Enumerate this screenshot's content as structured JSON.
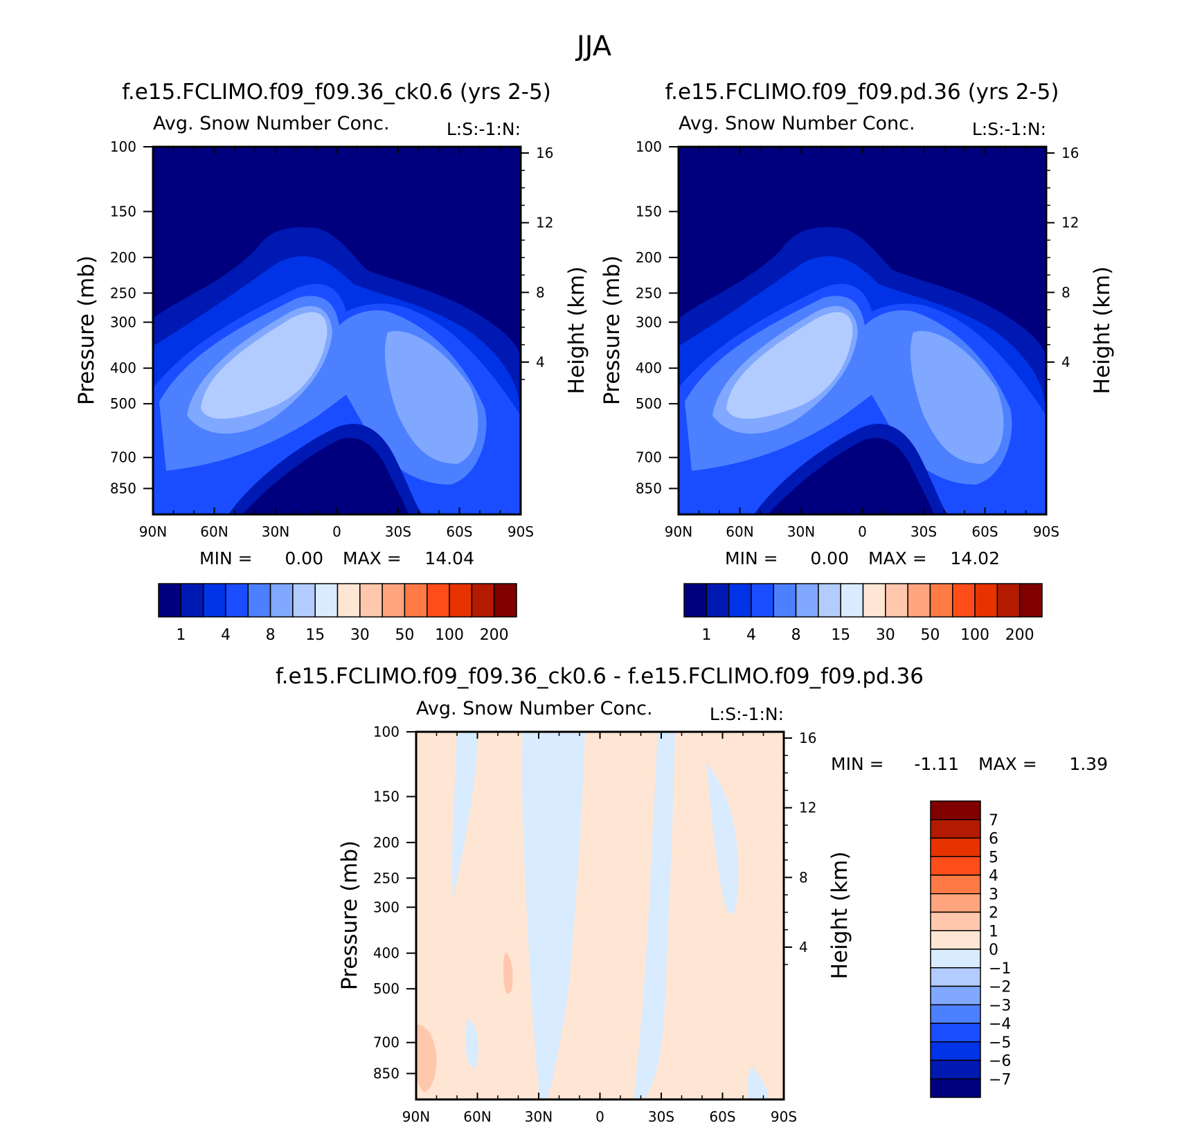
{
  "page": {
    "title": "JJA"
  },
  "panels": [
    {
      "id": "p1",
      "title": "f.e15.FCLIMO.f09_f09.36_ck0.6 (yrs 2-5)",
      "subtitle": "Avg. Snow Number Conc.",
      "units": "L:S:-1:N:",
      "ylabel": "Pressure (mb)",
      "y2label": "Height (km)",
      "min_label": "MIN =",
      "min_value": "0.00",
      "max_label": "MAX =",
      "max_value": "14.04"
    },
    {
      "id": "p2",
      "title": "f.e15.FCLIMO.f09_f09.pd.36 (yrs 2-5)",
      "subtitle": "Avg. Snow Number Conc.",
      "units": "L:S:-1:N:",
      "ylabel": "Pressure (mb)",
      "y2label": "Height (km)",
      "min_label": "MIN =",
      "min_value": "0.00",
      "max_label": "MAX =",
      "max_value": "14.02"
    },
    {
      "id": "p3",
      "title": "f.e15.FCLIMO.f09_f09.36_ck0.6 - f.e15.FCLIMO.f09_f09.pd.36",
      "subtitle": "Avg. Snow Number Conc.",
      "units": "L:S:-1:N:",
      "ylabel": "Pressure (mb)",
      "y2label": "Height (km)",
      "min_label": "MIN =",
      "min_value": "-1.11",
      "max_label": "MAX =",
      "max_value": "1.39"
    }
  ],
  "chart_data": [
    {
      "type": "heatmap",
      "title": "f.e15.FCLIMO.f09_f09.36_ck0.6 (yrs 2-5)",
      "subtitle": "Avg. Snow Number Conc.",
      "ylabel": "Pressure (mb)",
      "y2label": "Height (km)",
      "x_ticks": [
        "90N",
        "60N",
        "30N",
        "0",
        "30S",
        "60S",
        "90S"
      ],
      "y_ticks": [
        100,
        150,
        200,
        250,
        300,
        400,
        500,
        700,
        850
      ],
      "y_scale": "log",
      "ylim": [
        100,
        1000
      ],
      "y2_ticks": [
        4,
        8,
        12,
        16
      ],
      "min": 0.0,
      "max": 14.04,
      "colorbar_levels": [
        1,
        4,
        8,
        15,
        30,
        50,
        100,
        200
      ],
      "colorbar_colors": [
        "#00007f",
        "#0019b3",
        "#0033e6",
        "#1a4dff",
        "#4d80ff",
        "#80a8ff",
        "#b3ccff",
        "#d9ebff",
        "#ffe6d4",
        "#ffc8ac",
        "#ffa47d",
        "#ff7a45",
        "#ff4d1a",
        "#e63300",
        "#b31a00",
        "#800000"
      ]
    },
    {
      "type": "heatmap",
      "title": "f.e15.FCLIMO.f09_f09.pd.36 (yrs 2-5)",
      "subtitle": "Avg. Snow Number Conc.",
      "ylabel": "Pressure (mb)",
      "y2label": "Height (km)",
      "x_ticks": [
        "90N",
        "60N",
        "30N",
        "0",
        "30S",
        "60S",
        "90S"
      ],
      "y_ticks": [
        100,
        150,
        200,
        250,
        300,
        400,
        500,
        700,
        850
      ],
      "y_scale": "log",
      "ylim": [
        100,
        1000
      ],
      "y2_ticks": [
        4,
        8,
        12,
        16
      ],
      "min": 0.0,
      "max": 14.02,
      "colorbar_levels": [
        1,
        4,
        8,
        15,
        30,
        50,
        100,
        200
      ],
      "colorbar_colors": [
        "#00007f",
        "#0019b3",
        "#0033e6",
        "#1a4dff",
        "#4d80ff",
        "#80a8ff",
        "#b3ccff",
        "#d9ebff",
        "#ffe6d4",
        "#ffc8ac",
        "#ffa47d",
        "#ff7a45",
        "#ff4d1a",
        "#e63300",
        "#b31a00",
        "#800000"
      ]
    },
    {
      "type": "heatmap",
      "title": "f.e15.FCLIMO.f09_f09.36_ck0.6 - f.e15.FCLIMO.f09_f09.pd.36",
      "subtitle": "Avg. Snow Number Conc.",
      "ylabel": "Pressure (mb)",
      "y2label": "Height (km)",
      "x_ticks": [
        "90N",
        "60N",
        "30N",
        "0",
        "30S",
        "60S",
        "90S"
      ],
      "y_ticks": [
        100,
        150,
        200,
        250,
        300,
        400,
        500,
        700,
        850
      ],
      "y_scale": "log",
      "ylim": [
        100,
        1000
      ],
      "y2_ticks": [
        4,
        8,
        12,
        16
      ],
      "min": -1.11,
      "max": 1.39,
      "colorbar_levels": [
        7,
        6,
        5,
        4,
        3,
        2,
        1,
        0,
        -1,
        -2,
        -3,
        -4,
        -5,
        -6,
        -7
      ],
      "colorbar_colors": [
        "#800000",
        "#b31a00",
        "#e63300",
        "#ff4d1a",
        "#ff7a45",
        "#ffa47d",
        "#ffc8ac",
        "#ffe6d4",
        "#d9ebff",
        "#b3ccff",
        "#80a8ff",
        "#4d80ff",
        "#1a4dff",
        "#0033e6",
        "#0019b3",
        "#00007f"
      ]
    }
  ]
}
